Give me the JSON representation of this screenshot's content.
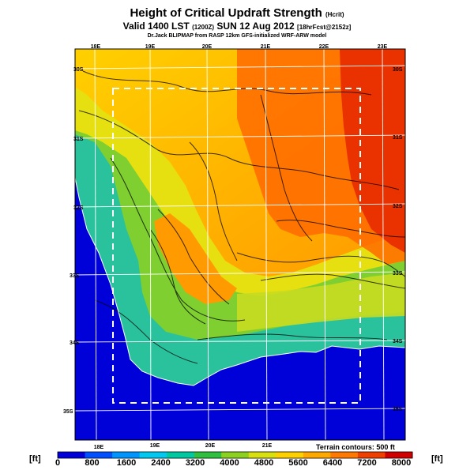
{
  "header": {
    "title": "Height of Critical Updraft Strength",
    "title_unit": "(Hcrit)",
    "subtitle_main": "Valid 1400 LST",
    "subtitle_time": "(1200Z)",
    "subtitle_date": "SUN 12 Aug 2012",
    "subtitle_fcst": "[18hrFcst@2152z]",
    "credit": "Dr.Jack BLIPMAP from RASP 12km GFS-initialized WRF-ARW model"
  },
  "map": {
    "top_lon_labels": [
      "18E",
      "19E",
      "20E",
      "21E",
      "22E",
      "23E"
    ],
    "bottom_lon_labels": [
      "18E",
      "19E",
      "20E",
      "21E"
    ],
    "left_lat_labels": [
      "30S",
      "31S",
      "32S",
      "33S",
      "34S",
      "35S"
    ],
    "right_lat_labels": [
      "30S",
      "31S",
      "32S",
      "33S",
      "34S",
      "35S"
    ],
    "terrain_note": "Terrain contours: 500 ft"
  },
  "colorbar": {
    "unit_left": "[ft]",
    "unit_right": "[ft]",
    "ticks": [
      "0",
      "800",
      "1600",
      "2400",
      "3200",
      "4000",
      "4800",
      "5600",
      "6400",
      "7200",
      "8000"
    ],
    "colors": [
      "#0000d8",
      "#0050ff",
      "#0094ff",
      "#00c8f0",
      "#00c8a0",
      "#30c040",
      "#8cd020",
      "#d8e010",
      "#ffd000",
      "#ffa800",
      "#ff7800",
      "#f04000",
      "#d00000"
    ]
  }
}
